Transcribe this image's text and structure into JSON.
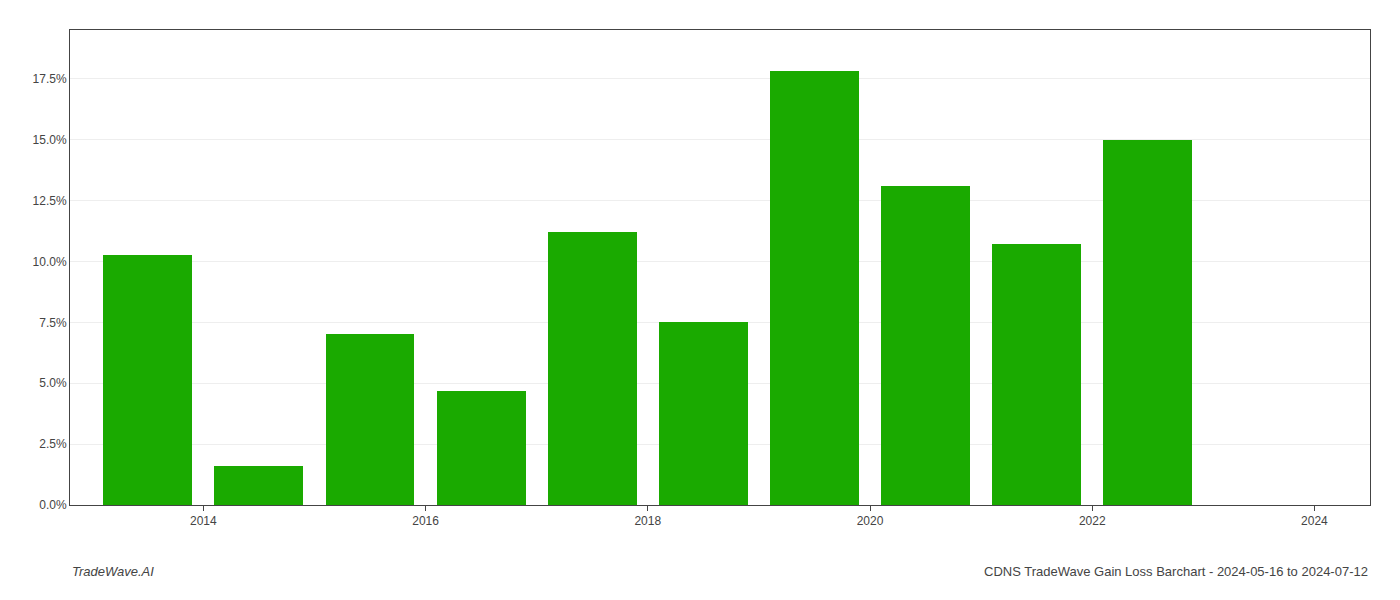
{
  "chart_data": {
    "type": "bar",
    "title": "CDNS TradeWave Gain Loss Barchart - 2024-05-16 to 2024-07-12",
    "annotations": [
      "TradeWave.AI"
    ],
    "x": [
      2014,
      2015,
      2016,
      2017,
      2018,
      2019,
      2020,
      2021,
      2022,
      2023
    ],
    "values": [
      0.1025,
      0.016,
      0.07,
      0.047,
      0.112,
      0.075,
      0.178,
      0.131,
      0.107,
      0.15
    ],
    "color": "#1aaa00",
    "xlim": [
      2013.3,
      2025.0
    ],
    "xticks": [
      {
        "value": 2014.5,
        "label": "2014"
      },
      {
        "value": 2016.5,
        "label": "2016"
      },
      {
        "value": 2018.5,
        "label": "2018"
      },
      {
        "value": 2020.5,
        "label": "2020"
      },
      {
        "value": 2022.5,
        "label": "2022"
      },
      {
        "value": 2024.5,
        "label": "2024"
      }
    ],
    "ylim": [
      0,
      0.195
    ],
    "yticks": [
      {
        "value": 0.0,
        "label": "0.0%"
      },
      {
        "value": 0.025,
        "label": "2.5%"
      },
      {
        "value": 0.05,
        "label": "5.0%"
      },
      {
        "value": 0.075,
        "label": "7.5%"
      },
      {
        "value": 0.1,
        "label": "10.0%"
      },
      {
        "value": 0.125,
        "label": "12.5%"
      },
      {
        "value": 0.15,
        "label": "15.0%"
      },
      {
        "value": 0.175,
        "label": "17.5%"
      }
    ],
    "grid": true
  }
}
